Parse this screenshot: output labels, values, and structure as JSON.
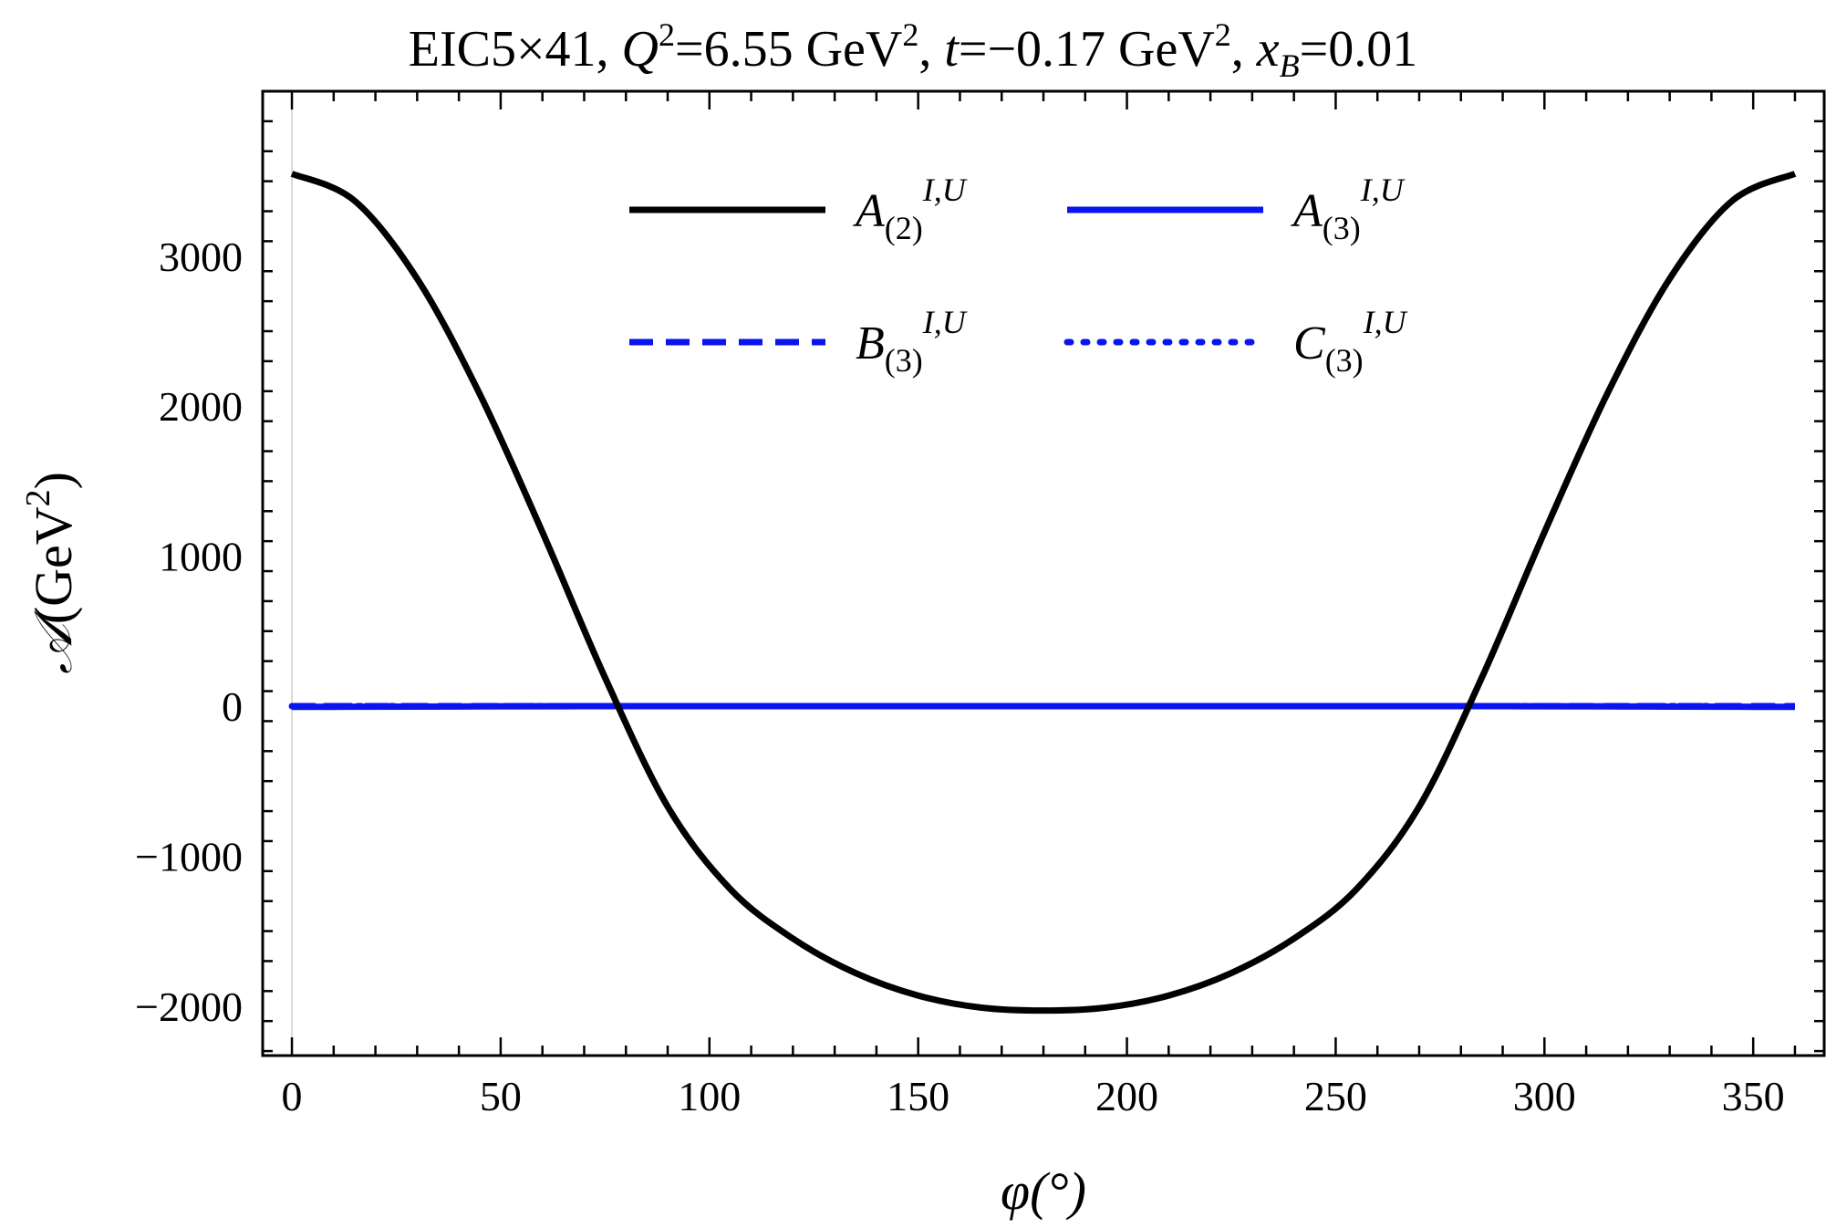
{
  "chart_data": {
    "type": "line",
    "title": "EIC5×41, Q²=6.55 GeV², t=−0.17 GeV², xB=0.01",
    "title_parts": {
      "lead": "EIC5×41, ",
      "q": "Q",
      "q_sup": "2",
      "q_val": "=6.55 GeV",
      "q_unit_sup": "2",
      "mid": ", ",
      "t": "t",
      "t_val": "=−0.17 GeV",
      "t_unit_sup": "2",
      "sep": ", ",
      "x": "x",
      "x_sub": "B",
      "x_val": "=0.01"
    },
    "xlabel": "φ(°)",
    "ylabel": "𝒜(GeV²)",
    "ylabel_parts": {
      "symbol": "𝒜",
      "unit": "(GeV",
      "unit_sup": "2",
      "close": ")"
    },
    "xlim": [
      -7,
      367
    ],
    "ylim": [
      -2330,
      4100
    ],
    "xticks": [
      0,
      50,
      100,
      150,
      200,
      250,
      300,
      350
    ],
    "xtick_labels": [
      "0",
      "50",
      "100",
      "150",
      "200",
      "250",
      "300",
      "350"
    ],
    "yticks": [
      -2000,
      -1000,
      0,
      1000,
      2000,
      3000
    ],
    "ytick_labels": [
      "−2000",
      "−1000",
      "0",
      "1000",
      "2000",
      "3000"
    ],
    "grid": false,
    "legend_position": "top-center",
    "x": [
      0,
      15,
      30,
      45,
      60,
      75,
      90,
      105,
      120,
      135,
      150,
      165,
      180,
      195,
      210,
      225,
      240,
      255,
      270,
      285,
      300,
      315,
      330,
      345,
      360
    ],
    "series": [
      {
        "name": "A(2)I,U",
        "legend": {
          "base": "A",
          "sub": "(2)",
          "sup": "I,U"
        },
        "color": "#000000",
        "style": "solid",
        "values": [
          3550,
          3370,
          2850,
          2080,
          1160,
          190,
          -670,
          -1220,
          -1550,
          -1780,
          -1930,
          -2010,
          -2030,
          -2010,
          -1930,
          -1780,
          -1550,
          -1220,
          -670,
          190,
          1160,
          2080,
          2850,
          3370,
          3550
        ]
      },
      {
        "name": "A(3)I,U",
        "legend": {
          "base": "A",
          "sub": "(3)",
          "sup": "I,U"
        },
        "color": "#0a14f0",
        "style": "solid",
        "values": [
          -5,
          -4,
          -3,
          -2,
          -1,
          0,
          0,
          0,
          0,
          0,
          0,
          0,
          0,
          0,
          0,
          0,
          0,
          0,
          0,
          0,
          -1,
          -2,
          -3,
          -4,
          -5
        ]
      },
      {
        "name": "B(3)I,U",
        "legend": {
          "base": "B",
          "sub": "(3)",
          "sup": "I,U"
        },
        "color": "#0a14f0",
        "style": "dashed",
        "values": [
          0,
          0,
          0,
          0,
          0,
          0,
          0,
          0,
          0,
          0,
          0,
          0,
          0,
          0,
          0,
          0,
          0,
          0,
          0,
          0,
          0,
          0,
          0,
          0,
          0
        ]
      },
      {
        "name": "C(3)I,U",
        "legend": {
          "base": "C",
          "sub": "(3)",
          "sup": "I,U"
        },
        "color": "#0a14f0",
        "style": "dotted",
        "values": [
          0,
          0,
          0,
          0,
          0,
          0,
          0,
          0,
          0,
          0,
          0,
          0,
          0,
          0,
          0,
          0,
          0,
          0,
          0,
          0,
          0,
          0,
          0,
          0,
          0
        ]
      }
    ]
  }
}
